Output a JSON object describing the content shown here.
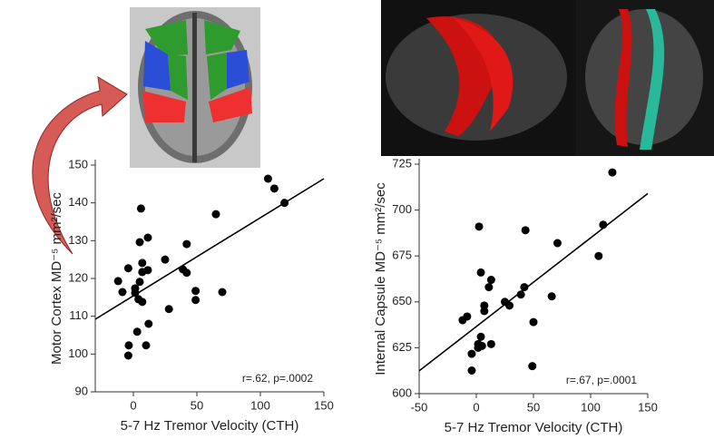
{
  "chart_data": [
    {
      "type": "scatter",
      "x_label": "5-7 Hz Tremor Velocity (CTH)",
      "y_label": "Motor Cortex MD⁻⁵ mm²/sec",
      "annotation": "r=.62,  p=.0002",
      "color": "#000000",
      "xlim": [
        -30,
        150
      ],
      "xticks": [
        0,
        50,
        100,
        150
      ],
      "ylim": [
        90,
        150
      ],
      "yticks": [
        90,
        100,
        110,
        120,
        130,
        140,
        150
      ],
      "x": [
        -12,
        -8.6,
        -4,
        -3.6,
        -4,
        1.4,
        1.4,
        4,
        5,
        6,
        5,
        7,
        7,
        7,
        3,
        11.4,
        11.4,
        12,
        10,
        25,
        28,
        39,
        42,
        42,
        49,
        49,
        65,
        70,
        106,
        111,
        119
      ],
      "values": [
        119.3,
        116.4,
        122.7,
        102.3,
        99.6,
        117.4,
        116.2,
        114.5,
        119.1,
        138.5,
        129.6,
        124.1,
        121.7,
        113.8,
        105.9,
        130.8,
        122.2,
        108,
        102.3,
        125,
        111.9,
        122.4,
        129.1,
        121.5,
        116.7,
        114.3,
        137,
        116.4,
        146.4,
        143.8,
        140
      ],
      "fit": {
        "x": [
          -30,
          150
        ],
        "values": [
          109.2,
          146.4
        ]
      }
    },
    {
      "type": "scatter",
      "x_label": "5-7 Hz Tremor Velocity (CTH)",
      "y_label": "Internal Capsule MD⁻⁵ mm²/sec",
      "annotation": "r=.67,  p=.0001",
      "color": "#000000",
      "xlim": [
        -50,
        150
      ],
      "xticks": [
        -50,
        0,
        50,
        100,
        150
      ],
      "ylim": [
        600,
        725
      ],
      "yticks": [
        600,
        625,
        650,
        675,
        700,
        725
      ],
      "x": [
        -12,
        -8,
        2.4,
        4,
        -4,
        -4,
        1.6,
        1.6,
        5,
        4,
        7,
        7,
        11,
        13,
        13,
        25,
        29,
        39,
        42,
        43,
        50,
        49,
        71,
        66,
        107,
        111,
        119
      ],
      "values": [
        640,
        642,
        691,
        666,
        612.6,
        621.7,
        625,
        627,
        626,
        631,
        645,
        648,
        658,
        662,
        627,
        650,
        648,
        654,
        658,
        689,
        639,
        615,
        682,
        653,
        675,
        692,
        720.5
      ],
      "fit": {
        "x": [
          -50,
          150
        ],
        "values": [
          612.4,
          709
        ]
      }
    }
  ]
}
